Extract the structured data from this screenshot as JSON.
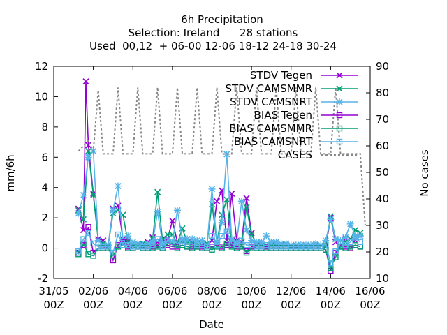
{
  "chart_data": {
    "type": "line",
    "title_lines": [
      "6h Precipitation",
      "Selection: Ireland      28 stations",
      "Used  00,12  + 06-00 12-06 18-12 24-18 30-24"
    ],
    "xlabel": "Date",
    "ylabel": "mm/6h",
    "y2label": "No cases",
    "xlim": [
      0,
      64
    ],
    "ylim": [
      -2,
      12
    ],
    "y2lim": [
      10,
      90
    ],
    "x_ticks": [
      {
        "x": 0,
        "line1": "31/05",
        "line2": "00Z"
      },
      {
        "x": 8,
        "line1": "02/06",
        "line2": "00Z"
      },
      {
        "x": 16,
        "line1": "04/06",
        "line2": "00Z"
      },
      {
        "x": 24,
        "line1": "06/06",
        "line2": "00Z"
      },
      {
        "x": 32,
        "line1": "08/06",
        "line2": "00Z"
      },
      {
        "x": 40,
        "line1": "10/06",
        "line2": "00Z"
      },
      {
        "x": 48,
        "line1": "12/06",
        "line2": "00Z"
      },
      {
        "x": 56,
        "line1": "14/06",
        "line2": "00Z"
      },
      {
        "x": 64,
        "line1": "16/06",
        "line2": "00Z"
      }
    ],
    "y_ticks": [
      -2,
      0,
      2,
      4,
      6,
      8,
      10,
      12
    ],
    "y2_ticks": [
      10,
      20,
      30,
      40,
      50,
      60,
      70,
      80,
      90
    ],
    "legend_position": "top-right",
    "series": [
      {
        "name": "STDV Tegen",
        "color": "#9400d3",
        "dash": "solid",
        "marker": "x",
        "axis": "y",
        "x": [
          5,
          6,
          6.5,
          7,
          8,
          9,
          10,
          11,
          12,
          13,
          14,
          15,
          16,
          17,
          18,
          19,
          20,
          21,
          22,
          23,
          24,
          25,
          26,
          27,
          28,
          29,
          30,
          31,
          32,
          33,
          34,
          35,
          36,
          37,
          38,
          39,
          40,
          41,
          42,
          43,
          44,
          45,
          46,
          47,
          48,
          49,
          50,
          51,
          52,
          53,
          54,
          55,
          56,
          57,
          58,
          59,
          60,
          61,
          62
        ],
        "y": [
          2.6,
          1.2,
          11.0,
          6.8,
          3.6,
          0.6,
          0.5,
          0.2,
          2.6,
          2.8,
          0.6,
          0.5,
          0.2,
          0.3,
          0.1,
          0.4,
          0.7,
          0.4,
          0.6,
          0.6,
          1.8,
          0.4,
          0.5,
          0.6,
          0.4,
          0.3,
          0.2,
          0.2,
          0.5,
          3.1,
          3.8,
          0.5,
          3.6,
          0.5,
          0.4,
          3.3,
          1.0,
          0.2,
          0.4,
          0.2,
          0.2,
          0.4,
          0.2,
          0.3,
          0.2,
          0.1,
          0.2,
          0.2,
          0.2,
          0.2,
          0.2,
          0.1,
          2.0,
          0.4,
          0.2,
          0.6,
          0.6,
          0.5,
          0.8
        ]
      },
      {
        "name": "STDV CAMSMMR",
        "color": "#009e73",
        "dash": "solid",
        "marker": "x",
        "axis": "y",
        "x": [
          5,
          6,
          7,
          8,
          9,
          10,
          11,
          12,
          13,
          14,
          15,
          16,
          17,
          18,
          19,
          20,
          21,
          22,
          23,
          24,
          25,
          26,
          27,
          28,
          29,
          30,
          31,
          32,
          33,
          34,
          35,
          36,
          37,
          38,
          39,
          40,
          41,
          42,
          43,
          44,
          45,
          46,
          47,
          48,
          49,
          50,
          51,
          52,
          53,
          54,
          55,
          56,
          57,
          58,
          59,
          60,
          61,
          62
        ],
        "y": [
          2.5,
          1.9,
          6.4,
          3.5,
          0.5,
          0.3,
          0.2,
          2.3,
          2.5,
          2.2,
          0.4,
          0.2,
          0.2,
          0.3,
          0.2,
          0.6,
          3.7,
          0.5,
          0.9,
          0.9,
          0.3,
          1.3,
          0.4,
          0.3,
          0.3,
          0.2,
          0.3,
          2.9,
          0.4,
          2.2,
          3.2,
          0.4,
          0.4,
          0.2,
          2.7,
          0.9,
          0.3,
          0.2,
          0.2,
          0.2,
          0.2,
          0.2,
          0.3,
          0.1,
          0.2,
          0.2,
          0.1,
          0.2,
          0.2,
          0.2,
          0.2,
          2.1,
          0.6,
          0.5,
          0.4,
          0.6,
          1.2,
          1.0
        ]
      },
      {
        "name": "STDV CAMSNRT",
        "color": "#56b4e9",
        "dash": "solid",
        "marker": "star",
        "axis": "y",
        "x": [
          5,
          6,
          7,
          8,
          9,
          10,
          11,
          12,
          13,
          14,
          15,
          16,
          17,
          18,
          19,
          20,
          21,
          22,
          23,
          24,
          25,
          26,
          27,
          28,
          29,
          30,
          31,
          32,
          33,
          34,
          35,
          36,
          37,
          38,
          39,
          40,
          41,
          42,
          43,
          44,
          45,
          46,
          47,
          48,
          49,
          50,
          51,
          52,
          53,
          54,
          55,
          56,
          57,
          58,
          59,
          60,
          61,
          62
        ],
        "y": [
          2.3,
          3.5,
          6.0,
          6.4,
          0.5,
          0.2,
          0.2,
          2.5,
          4.1,
          0.5,
          0.8,
          0.4,
          0.3,
          0.2,
          0.3,
          0.4,
          2.4,
          0.3,
          0.4,
          0.4,
          2.5,
          0.6,
          0.6,
          0.6,
          0.5,
          0.5,
          0.2,
          3.9,
          0.4,
          1.7,
          6.2,
          0.6,
          0.4,
          3.1,
          1.2,
          0.5,
          0.4,
          0.4,
          0.8,
          0.4,
          0.4,
          0.3,
          0.3,
          0.2,
          0.2,
          0.2,
          0.2,
          0.2,
          0.3,
          0.2,
          0.5,
          1.9,
          0.6,
          0.5,
          0.7,
          1.6,
          0.8,
          0.8
        ]
      },
      {
        "name": "BIAS Tegen",
        "color": "#9400d3",
        "dash": "solid",
        "marker": "box",
        "axis": "y",
        "x": [
          5,
          6,
          7,
          8,
          9,
          10,
          11,
          12,
          13,
          14,
          15,
          16,
          17,
          18,
          19,
          20,
          21,
          22,
          23,
          24,
          25,
          26,
          27,
          28,
          29,
          30,
          31,
          32,
          33,
          34,
          35,
          36,
          37,
          38,
          39,
          40,
          41,
          42,
          43,
          44,
          45,
          46,
          47,
          48,
          49,
          50,
          51,
          52,
          53,
          54,
          55,
          56,
          57,
          58,
          59,
          60,
          61,
          62
        ],
        "y": [
          -0.3,
          0.2,
          1.4,
          -0.3,
          0.0,
          0.0,
          0.1,
          -0.8,
          0.2,
          0.4,
          0.1,
          0.0,
          0.1,
          0.0,
          0.0,
          0.1,
          0.2,
          0.0,
          0.2,
          0.1,
          0.1,
          0.2,
          0.1,
          0.1,
          0.1,
          0.1,
          0.0,
          0.1,
          0.2,
          0.1,
          0.2,
          0.2,
          0.1,
          0.1,
          -0.2,
          0.1,
          0.0,
          0.0,
          0.1,
          0.0,
          0.0,
          0.0,
          0.0,
          0.0,
          0.0,
          0.0,
          0.0,
          0.0,
          0.0,
          0.0,
          -0.1,
          -1.5,
          -0.3,
          0.1,
          0.1,
          0.0,
          0.2,
          0.1
        ]
      },
      {
        "name": "BIAS CAMSMMR",
        "color": "#009e73",
        "dash": "solid",
        "marker": "box",
        "axis": "y",
        "x": [
          5,
          6,
          7,
          8,
          9,
          10,
          11,
          12,
          13,
          14,
          15,
          16,
          17,
          18,
          19,
          20,
          21,
          22,
          23,
          24,
          25,
          26,
          27,
          28,
          29,
          30,
          31,
          32,
          33,
          34,
          35,
          36,
          37,
          38,
          39,
          40,
          41,
          42,
          43,
          44,
          45,
          46,
          47,
          48,
          49,
          50,
          51,
          52,
          53,
          54,
          55,
          56,
          57,
          58,
          59,
          60,
          61,
          62
        ],
        "y": [
          -0.4,
          0.3,
          -0.4,
          -0.5,
          0.0,
          0.0,
          0.0,
          -0.5,
          0.1,
          0.2,
          0.0,
          0.0,
          0.1,
          0.0,
          0.0,
          0.0,
          0.1,
          0.0,
          0.3,
          0.3,
          0.0,
          0.2,
          0.1,
          0.0,
          0.1,
          0.0,
          0.0,
          -0.1,
          0.1,
          0.0,
          0.3,
          0.1,
          0.0,
          0.1,
          -0.3,
          0.0,
          0.0,
          0.0,
          0.0,
          0.0,
          0.0,
          0.0,
          0.0,
          0.0,
          0.0,
          0.0,
          0.0,
          0.0,
          0.0,
          0.0,
          -0.1,
          -1.3,
          -0.6,
          0.1,
          0.0,
          0.1,
          0.2,
          0.1
        ]
      },
      {
        "name": "BIAS CAMSNRT",
        "color": "#56b4e9",
        "dash": "solid",
        "marker": "box",
        "axis": "y",
        "x": [
          5,
          6,
          7,
          8,
          9,
          10,
          11,
          12,
          13,
          14,
          15,
          16,
          17,
          18,
          19,
          20,
          21,
          22,
          23,
          24,
          25,
          26,
          27,
          28,
          29,
          30,
          31,
          32,
          33,
          34,
          35,
          36,
          37,
          38,
          39,
          40,
          41,
          42,
          43,
          44,
          45,
          46,
          47,
          48,
          49,
          50,
          51,
          52,
          53,
          54,
          55,
          56,
          57,
          58,
          59,
          60,
          61,
          62
        ],
        "y": [
          -0.2,
          0.6,
          1.0,
          0.3,
          0.1,
          0.1,
          0.1,
          -0.3,
          0.9,
          0.2,
          0.2,
          0.1,
          0.1,
          0.1,
          0.1,
          0.2,
          0.6,
          0.1,
          0.5,
          0.6,
          0.3,
          0.5,
          0.3,
          0.3,
          0.2,
          0.2,
          0.1,
          0.8,
          0.2,
          0.8,
          1.1,
          0.3,
          0.2,
          0.5,
          0.2,
          0.2,
          0.1,
          0.1,
          0.2,
          0.1,
          0.1,
          0.1,
          0.1,
          0.1,
          0.1,
          0.1,
          0.1,
          0.1,
          0.1,
          0.1,
          0.3,
          -1.0,
          -0.2,
          0.3,
          0.2,
          0.4,
          0.7,
          0.4
        ]
      },
      {
        "name": "CASES",
        "color": "#888888",
        "dash": "dotted",
        "marker": "none",
        "axis": "y2",
        "x": [
          5,
          6,
          7,
          8,
          9,
          10,
          11,
          12,
          13,
          14,
          15,
          16,
          17,
          18,
          19,
          20,
          21,
          22,
          23,
          24,
          25,
          26,
          27,
          28,
          29,
          30,
          31,
          32,
          33,
          34,
          35,
          36,
          37,
          38,
          39,
          40,
          41,
          42,
          43,
          44,
          45,
          46,
          47,
          48,
          49,
          50,
          51,
          52,
          53,
          54,
          55,
          56,
          57,
          58,
          59,
          60,
          61,
          62,
          63
        ],
        "y": [
          58,
          60,
          62,
          58,
          81,
          57,
          57,
          57,
          82,
          57,
          57,
          57,
          82,
          57,
          57,
          57,
          82,
          57,
          57,
          57,
          82,
          57,
          57,
          57,
          82,
          57,
          57,
          57,
          82,
          57,
          57,
          57,
          82,
          57,
          57,
          57,
          82,
          57,
          57,
          57,
          82,
          57,
          57,
          57,
          82,
          57,
          57,
          57,
          82,
          57,
          57,
          57,
          82,
          57,
          57,
          57,
          57,
          57,
          30
        ]
      }
    ]
  }
}
